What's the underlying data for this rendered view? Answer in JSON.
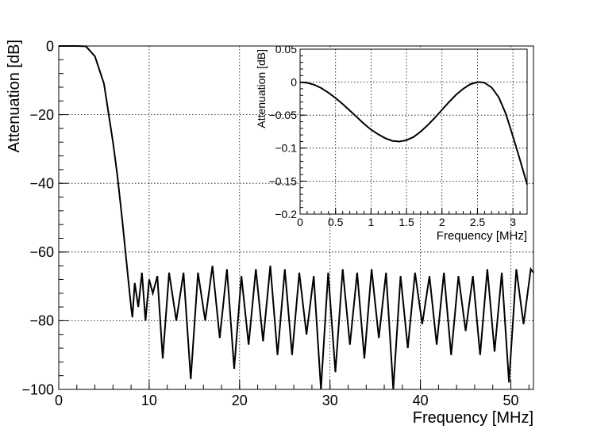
{
  "chart_data": [
    {
      "type": "line",
      "xlabel": "Frequency [MHz]",
      "ylabel": "Attenuation [dB]",
      "xlim": [
        0,
        52.5
      ],
      "ylim": [
        -100,
        0
      ],
      "x_ticks": [
        0,
        10,
        20,
        30,
        40,
        50
      ],
      "x_tick_labels": [
        "0",
        "10",
        "20",
        "30",
        "40",
        "50"
      ],
      "y_ticks": [
        0,
        -20,
        -40,
        -60,
        -80,
        -100
      ],
      "y_tick_labels": [
        "0",
        "−20",
        "−40",
        "−60",
        "−80",
        "−100"
      ],
      "grid": true,
      "line_color": "#000000",
      "series": [
        {
          "x": [
            0,
            1,
            2,
            3,
            4,
            5,
            6,
            6.5,
            7,
            7.5,
            8,
            8.15,
            8.4,
            8.8,
            9.2,
            9.6,
            10.0,
            10.4,
            10.9,
            11.5,
            12.2,
            13.0,
            13.8,
            14.6,
            15.4,
            16.2,
            17.0,
            17.8,
            18.6,
            19.4,
            20.2,
            21.0,
            21.8,
            22.6,
            23.4,
            24.2,
            25.0,
            25.8,
            26.6,
            27.4,
            28.2,
            29.0,
            29.8,
            30.6,
            31.4,
            32.2,
            33.0,
            33.8,
            34.6,
            35.4,
            36.2,
            37.0,
            37.8,
            38.6,
            39.4,
            40.2,
            41.0,
            41.8,
            42.6,
            43.4,
            44.2,
            45.0,
            45.8,
            46.6,
            47.4,
            48.2,
            49.0,
            49.8,
            50.6,
            51.4,
            52.2,
            52.5
          ],
          "y": [
            0,
            0,
            0,
            -0.1,
            -3,
            -11,
            -28,
            -38,
            -50,
            -63,
            -76,
            -79,
            -69,
            -76,
            -66,
            -80,
            -68,
            -72,
            -67,
            -91,
            -66,
            -80,
            -66,
            -97,
            -66,
            -80,
            -64,
            -85,
            -65,
            -94,
            -67,
            -87,
            -65,
            -86,
            -64,
            -90,
            -65,
            -90,
            -66,
            -84,
            -67,
            -100,
            -66,
            -95,
            -65,
            -87,
            -66,
            -91,
            -65,
            -85,
            -66,
            -100,
            -67,
            -88,
            -66,
            -81,
            -67,
            -87,
            -66,
            -90,
            -67,
            -83,
            -67,
            -90,
            -65,
            -89,
            -66,
            -98,
            -65,
            -81,
            -65,
            -66
          ]
        }
      ]
    },
    {
      "type": "line",
      "xlabel": "Frequency [MHz]",
      "ylabel": "Attenuation [dB]",
      "xlim": [
        0,
        3.2
      ],
      "ylim": [
        -0.2,
        0.05
      ],
      "x_ticks": [
        0,
        0.5,
        1,
        1.5,
        2,
        2.5,
        3
      ],
      "x_tick_labels": [
        "0",
        "0.5",
        "1",
        "1.5",
        "2",
        "2.5",
        "3"
      ],
      "y_ticks": [
        0.05,
        0,
        -0.05,
        -0.1,
        -0.15,
        -0.2
      ],
      "y_tick_labels": [
        "0.05",
        "0",
        "−0.05",
        "−0.1",
        "−0.15",
        "−0.2"
      ],
      "grid": true,
      "line_color": "#000000",
      "series": [
        {
          "x": [
            0,
            0.1,
            0.2,
            0.3,
            0.4,
            0.5,
            0.6,
            0.7,
            0.8,
            0.9,
            1.0,
            1.1,
            1.2,
            1.3,
            1.4,
            1.5,
            1.6,
            1.7,
            1.8,
            1.9,
            2.0,
            2.1,
            2.2,
            2.3,
            2.4,
            2.5,
            2.55,
            2.6,
            2.7,
            2.8,
            2.9,
            3.0,
            3.1,
            3.2
          ],
          "y": [
            0,
            -0.001,
            -0.004,
            -0.009,
            -0.016,
            -0.024,
            -0.033,
            -0.043,
            -0.053,
            -0.063,
            -0.072,
            -0.079,
            -0.085,
            -0.089,
            -0.09,
            -0.088,
            -0.083,
            -0.075,
            -0.065,
            -0.054,
            -0.042,
            -0.03,
            -0.019,
            -0.01,
            -0.003,
            0,
            0,
            -0.001,
            -0.008,
            -0.023,
            -0.048,
            -0.082,
            -0.118,
            -0.155
          ]
        }
      ]
    }
  ]
}
